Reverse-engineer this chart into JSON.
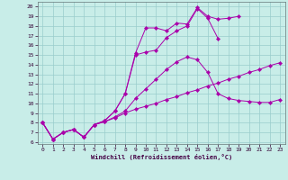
{
  "background_color": "#c8ede8",
  "grid_color": "#99cccc",
  "line_color": "#aa00aa",
  "xlim": [
    -0.5,
    23.5
  ],
  "ylim": [
    5.8,
    20.5
  ],
  "xticks": [
    0,
    1,
    2,
    3,
    4,
    5,
    6,
    7,
    8,
    9,
    10,
    11,
    12,
    13,
    14,
    15,
    16,
    17,
    18,
    19,
    20,
    21,
    22,
    23
  ],
  "yticks": [
    6,
    7,
    8,
    9,
    10,
    11,
    12,
    13,
    14,
    15,
    16,
    17,
    18,
    19,
    20
  ],
  "xlabel": "Windchill (Refroidissement éolien,°C)",
  "curves": [
    {
      "x": [
        0,
        1,
        2,
        3,
        4,
        5,
        6,
        7,
        8,
        9,
        10,
        11,
        12,
        13,
        14,
        15,
        16,
        17,
        18,
        19,
        20,
        21,
        22,
        23
      ],
      "y": [
        8.0,
        6.3,
        7.0,
        7.3,
        6.5,
        7.8,
        8.1,
        8.5,
        9.0,
        9.4,
        9.7,
        10.0,
        10.4,
        10.7,
        11.1,
        11.4,
        11.8,
        12.1,
        12.5,
        12.8,
        13.2,
        13.5,
        13.9,
        14.2
      ]
    },
    {
      "x": [
        0,
        1,
        2,
        3,
        4,
        5,
        6,
        7,
        8,
        9,
        10,
        11,
        12,
        13,
        14,
        15,
        16,
        17,
        18,
        19,
        20,
        21,
        22,
        23
      ],
      "y": [
        8.0,
        6.3,
        7.0,
        7.3,
        6.5,
        7.8,
        8.1,
        8.6,
        9.2,
        10.5,
        11.5,
        12.5,
        13.5,
        14.3,
        14.8,
        14.5,
        13.2,
        11.0,
        10.5,
        10.3,
        10.2,
        10.1,
        10.1,
        10.4
      ]
    },
    {
      "x": [
        0,
        1,
        2,
        3,
        4,
        5,
        6,
        7,
        8,
        9,
        10,
        11,
        12,
        13,
        14,
        15,
        16,
        17
      ],
      "y": [
        8.0,
        6.3,
        7.0,
        7.3,
        6.5,
        7.8,
        8.2,
        9.2,
        11.0,
        15.0,
        15.3,
        15.5,
        16.8,
        17.5,
        18.0,
        19.8,
        18.8,
        16.7
      ]
    },
    {
      "x": [
        0,
        1,
        2,
        3,
        4,
        5,
        6,
        7,
        8,
        9,
        10,
        11,
        12,
        13,
        14,
        15,
        16,
        17,
        18,
        19
      ],
      "y": [
        8.0,
        6.3,
        7.0,
        7.3,
        6.5,
        7.8,
        8.2,
        9.2,
        11.0,
        15.2,
        17.8,
        17.8,
        17.5,
        18.3,
        18.2,
        19.9,
        19.0,
        18.7,
        18.8,
        19.0
      ]
    }
  ]
}
